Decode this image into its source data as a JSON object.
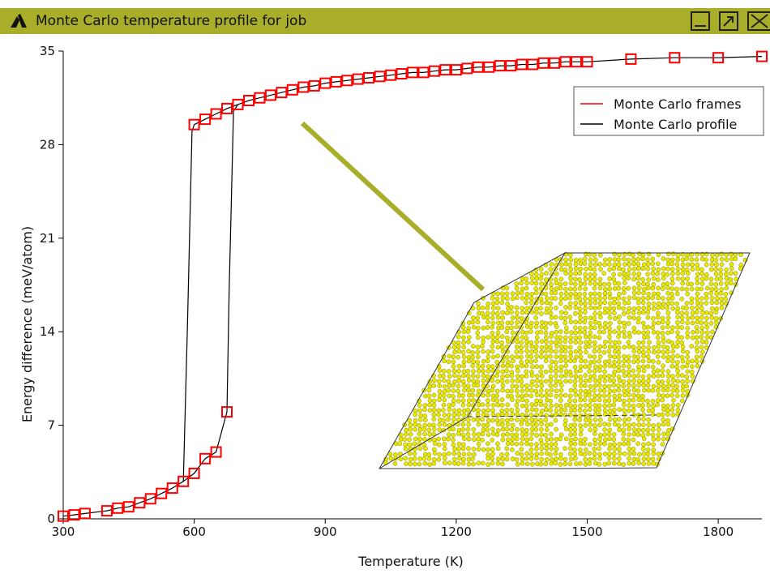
{
  "window": {
    "title": "Monte Carlo temperature profile for job",
    "title_icon": "ams-logo-icon",
    "titlebar_color": "#a8ad2a",
    "buttons": [
      "minimize-icon",
      "restore-icon",
      "close-icon"
    ]
  },
  "chart_data": {
    "type": "line",
    "xlabel": "Temperature (K)",
    "ylabel": "Energy difference (meV/atom)",
    "xlim": [
      300,
      1900
    ],
    "ylim": [
      0,
      35
    ],
    "xticks": [
      300,
      600,
      900,
      1200,
      1500,
      1800
    ],
    "yticks": [
      0,
      7,
      14,
      21,
      28,
      35
    ],
    "legend_position": "top-right",
    "grid": false,
    "series": [
      {
        "name": "Monte Carlo frames",
        "color": "#ff0000",
        "marker": "open-square",
        "x": [
          300,
          325,
          350,
          400,
          425,
          450,
          475,
          500,
          525,
          550,
          575,
          600,
          625,
          650,
          675,
          600,
          625,
          650,
          675,
          700,
          725,
          750,
          775,
          800,
          825,
          850,
          875,
          900,
          925,
          950,
          975,
          1000,
          1025,
          1050,
          1075,
          1100,
          1125,
          1150,
          1175,
          1200,
          1225,
          1250,
          1275,
          1300,
          1325,
          1350,
          1375,
          1400,
          1425,
          1450,
          1475,
          1500,
          1600,
          1700,
          1800,
          1900
        ],
        "y": [
          0.2,
          0.3,
          0.4,
          0.6,
          0.8,
          0.9,
          1.2,
          1.5,
          1.9,
          2.3,
          2.8,
          3.4,
          4.5,
          5.0,
          8.0,
          29.5,
          29.9,
          30.3,
          30.7,
          31.0,
          31.3,
          31.5,
          31.7,
          31.9,
          32.1,
          32.3,
          32.4,
          32.6,
          32.7,
          32.8,
          32.9,
          33.0,
          33.1,
          33.2,
          33.3,
          33.4,
          33.4,
          33.5,
          33.6,
          33.6,
          33.7,
          33.8,
          33.8,
          33.9,
          33.9,
          34.0,
          34.0,
          34.1,
          34.1,
          34.2,
          34.2,
          34.2,
          34.4,
          34.5,
          34.5,
          34.6
        ]
      },
      {
        "name": "Monte Carlo profile",
        "color": "#000000",
        "x": [
          300,
          325,
          350,
          400,
          425,
          450,
          475,
          500,
          525,
          550,
          575,
          585,
          595,
          600,
          625,
          650,
          675,
          700,
          725,
          750,
          775,
          800,
          825,
          850,
          875,
          900,
          925,
          950,
          975,
          1000,
          1025,
          1050,
          1075,
          1100,
          1125,
          1150,
          1175,
          1200,
          1225,
          1250,
          1275,
          1300,
          1325,
          1350,
          1375,
          1400,
          1425,
          1450,
          1475,
          1500,
          1600,
          1700,
          1800,
          1900,
          1900,
          1800,
          1700,
          1600,
          1500,
          1475,
          1450,
          1425,
          1400,
          1375,
          1350,
          1325,
          1300,
          1275,
          1250,
          1225,
          1200,
          1175,
          1150,
          1125,
          1100,
          1075,
          1050,
          1025,
          1000,
          975,
          950,
          925,
          900,
          875,
          850,
          825,
          800,
          775,
          750,
          725,
          700,
          690,
          680,
          675,
          650,
          625,
          600,
          575,
          550,
          525,
          500,
          475,
          450,
          425,
          400,
          350,
          325,
          300
        ],
        "y": [
          0.2,
          0.3,
          0.4,
          0.6,
          0.8,
          0.9,
          1.2,
          1.5,
          1.9,
          2.3,
          2.8,
          15.0,
          29.0,
          29.5,
          29.9,
          30.3,
          30.7,
          31.0,
          31.3,
          31.5,
          31.7,
          31.9,
          32.1,
          32.3,
          32.4,
          32.6,
          32.7,
          32.8,
          32.9,
          33.0,
          33.1,
          33.2,
          33.3,
          33.4,
          33.4,
          33.5,
          33.6,
          33.6,
          33.7,
          33.8,
          33.8,
          33.9,
          33.9,
          34.0,
          34.0,
          34.1,
          34.1,
          34.2,
          34.2,
          34.2,
          34.4,
          34.5,
          34.5,
          34.6,
          34.6,
          34.5,
          34.5,
          34.4,
          34.2,
          34.2,
          34.2,
          34.1,
          34.1,
          34.0,
          34.0,
          33.9,
          33.9,
          33.8,
          33.8,
          33.7,
          33.6,
          33.6,
          33.5,
          33.4,
          33.4,
          33.3,
          33.2,
          33.1,
          33.0,
          32.9,
          32.8,
          32.7,
          32.6,
          32.4,
          32.3,
          32.1,
          31.9,
          31.7,
          31.5,
          31.3,
          31.0,
          30.5,
          17.0,
          8.0,
          5.0,
          4.5,
          3.4,
          2.8,
          2.3,
          1.9,
          1.5,
          1.2,
          0.9,
          0.8,
          0.6,
          0.4,
          0.3,
          0.2
        ]
      }
    ],
    "inset": {
      "description": "atomic-structure-snapshot",
      "atom_color": "#e8e800",
      "pointer_color": "#a8ad2a"
    }
  }
}
